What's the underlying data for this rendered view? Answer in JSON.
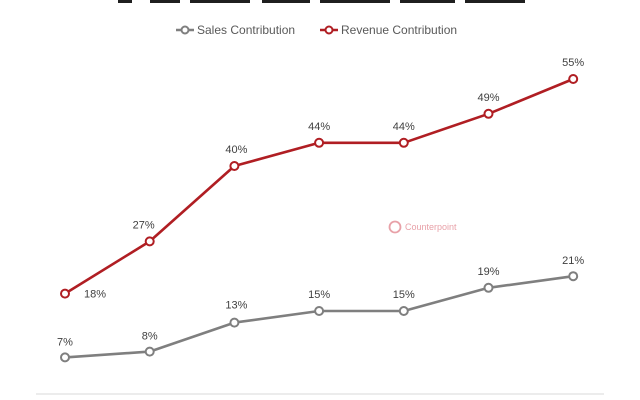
{
  "chart_data": {
    "type": "line",
    "categories": [
      "",
      "",
      "",
      "",
      "",
      "",
      ""
    ],
    "series": [
      {
        "name": "Sales Contribution",
        "color": "#7f7f7f",
        "values": [
          7,
          8,
          13,
          15,
          15,
          19,
          21
        ],
        "labels": [
          "7%",
          "8%",
          "13%",
          "15%",
          "15%",
          "19%",
          "21%"
        ]
      },
      {
        "name": "Revenue Contribution",
        "color": "#b01e23",
        "values": [
          18,
          27,
          40,
          44,
          44,
          49,
          55
        ],
        "labels": [
          "18%",
          "27%",
          "40%",
          "44%",
          "44%",
          "49%",
          "55%"
        ]
      }
    ],
    "title": "",
    "xlabel": "",
    "ylabel": "",
    "ylim": [
      0,
      60
    ],
    "grid": false,
    "legend_position": "top-center",
    "value_suffix": "%"
  },
  "watermark": {
    "text": "Counterpoint",
    "color": "#e8a1a8"
  },
  "colors": {
    "sales": "#7f7f7f",
    "revenue": "#b01e23",
    "background": "#ffffff"
  }
}
